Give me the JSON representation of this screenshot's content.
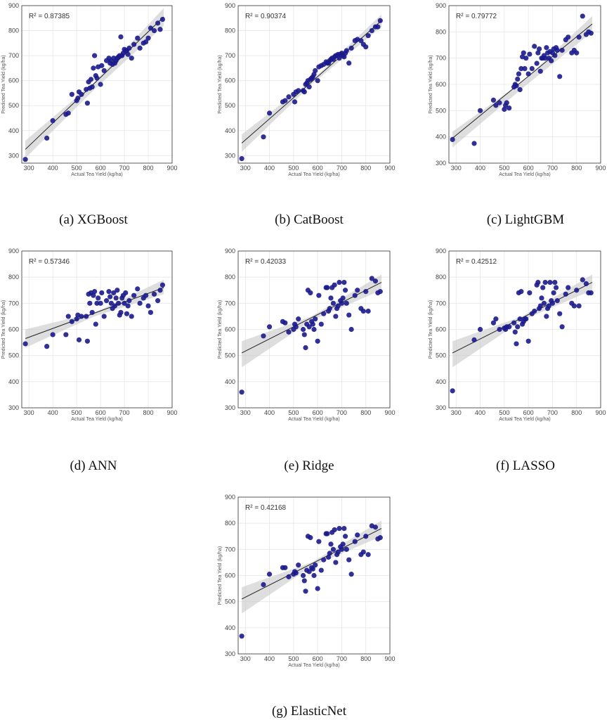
{
  "colors": {
    "point": "#1a1a8c",
    "fit_line": "#222222",
    "band": "#c8c8c8",
    "grid": "#e6e6e6"
  },
  "actual_x": [
    285,
    375,
    400,
    455,
    465,
    480,
    500,
    505,
    510,
    520,
    540,
    545,
    550,
    555,
    560,
    565,
    570,
    575,
    580,
    585,
    590,
    600,
    605,
    615,
    625,
    635,
    640,
    645,
    650,
    655,
    660,
    665,
    670,
    675,
    680,
    685,
    690,
    695,
    700,
    705,
    710,
    715,
    720,
    730,
    740,
    755,
    765,
    780,
    790,
    800,
    810,
    825,
    840,
    850,
    860
  ],
  "chart_data": [
    {
      "type": "scatter",
      "caption": "(a) XGBoost",
      "r2_text": "R² = 0.87385",
      "xlabel": "Actual Tea Yield (kg/ha)",
      "ylabel": "Predicted Tea Yield (kg/ha)",
      "xlim": [
        270,
        900
      ],
      "ylim": [
        270,
        900
      ],
      "xticks": [
        300,
        400,
        500,
        600,
        700,
        800,
        900
      ],
      "yticks": [
        300,
        400,
        500,
        600,
        700,
        800,
        900
      ],
      "fit": [
        [
          285,
          325
        ],
        [
          865,
          855
        ]
      ],
      "band": [
        [
          285,
          360,
          290
        ],
        [
          575,
          595,
          565
        ],
        [
          865,
          890,
          820
        ]
      ],
      "y": [
        285,
        370,
        440,
        465,
        470,
        545,
        520,
        530,
        555,
        545,
        565,
        510,
        595,
        570,
        605,
        575,
        650,
        700,
        620,
        610,
        655,
        585,
        660,
        640,
        680,
        690,
        670,
        680,
        665,
        690,
        670,
        680,
        690,
        695,
        700,
        775,
        700,
        710,
        725,
        720,
        720,
        705,
        730,
        690,
        745,
        770,
        730,
        750,
        755,
        770,
        810,
        800,
        830,
        805,
        845
      ]
    },
    {
      "type": "scatter",
      "caption": "(b) CatBoost",
      "r2_text": "R² = 0.90374",
      "xlabel": "Actual Tea Yield (kg/ha)",
      "ylabel": "Predicted Tea Yield (kg/ha)",
      "xlim": [
        270,
        900
      ],
      "ylim": [
        270,
        900
      ],
      "xticks": [
        300,
        400,
        500,
        600,
        700,
        800,
        900
      ],
      "yticks": [
        300,
        400,
        500,
        600,
        700,
        800,
        900
      ],
      "fit": [
        [
          285,
          350
        ],
        [
          865,
          840
        ]
      ],
      "band": [
        [
          285,
          385,
          315
        ],
        [
          575,
          600,
          585
        ],
        [
          865,
          865,
          815
        ]
      ],
      "y": [
        288,
        375,
        470,
        515,
        520,
        535,
        545,
        515,
        555,
        560,
        560,
        555,
        585,
        590,
        600,
        575,
        605,
        610,
        615,
        625,
        640,
        600,
        655,
        660,
        665,
        675,
        670,
        670,
        680,
        685,
        690,
        685,
        695,
        700,
        700,
        705,
        690,
        705,
        710,
        700,
        695,
        710,
        720,
        670,
        730,
        760,
        765,
        760,
        745,
        735,
        780,
        800,
        815,
        815,
        840
      ]
    },
    {
      "type": "scatter",
      "caption": "(c) LightGBM",
      "r2_text": "R² = 0.79772",
      "xlabel": "Actual Tea Yield (kg/ha)",
      "ylabel": "Predicted Tea Yield (kg/ha)",
      "xlim": [
        270,
        900
      ],
      "ylim": [
        300,
        900
      ],
      "xticks": [
        300,
        400,
        500,
        600,
        700,
        800,
        900
      ],
      "yticks": [
        300,
        400,
        500,
        600,
        700,
        800,
        900
      ],
      "fit": [
        [
          285,
          395
        ],
        [
          865,
          830
        ]
      ],
      "band": [
        [
          285,
          420,
          360
        ],
        [
          575,
          610,
          585
        ],
        [
          865,
          860,
          800
        ]
      ],
      "y": [
        390,
        375,
        500,
        540,
        520,
        530,
        505,
        520,
        530,
        510,
        590,
        600,
        595,
        620,
        640,
        580,
        660,
        705,
        720,
        660,
        700,
        640,
        715,
        660,
        745,
        680,
        720,
        735,
        650,
        700,
        700,
        710,
        700,
        740,
        720,
        700,
        725,
        690,
        720,
        735,
        710,
        740,
        730,
        630,
        730,
        770,
        780,
        720,
        730,
        720,
        780,
        860,
        790,
        800,
        795
      ]
    },
    {
      "type": "scatter",
      "caption": "(d) ANN",
      "r2_text": "R² = 0.57346",
      "xlabel": "Actual Tea Yield (kg/ha)",
      "ylabel": "Predicted Tea Yield (kg/ha)",
      "xlim": [
        270,
        900
      ],
      "ylim": [
        300,
        900
      ],
      "xticks": [
        300,
        400,
        500,
        600,
        700,
        800,
        900
      ],
      "yticks": [
        300,
        400,
        500,
        600,
        700,
        800,
        900
      ],
      "fit": [
        [
          285,
          565
        ],
        [
          865,
          760
        ]
      ],
      "band": [
        [
          285,
          600,
          530
        ],
        [
          575,
          665,
          650
        ],
        [
          865,
          790,
          735
        ]
      ],
      "y": [
        545,
        535,
        580,
        580,
        650,
        630,
        640,
        655,
        560,
        650,
        650,
        555,
        735,
        700,
        740,
        665,
        730,
        745,
        620,
        700,
        720,
        700,
        740,
        650,
        710,
        745,
        725,
        700,
        680,
        740,
        690,
        720,
        750,
        700,
        655,
        665,
        720,
        730,
        700,
        740,
        660,
        690,
        710,
        650,
        730,
        755,
        700,
        720,
        730,
        690,
        665,
        735,
        710,
        750,
        770
      ]
    },
    {
      "type": "scatter",
      "caption": "(e) Ridge",
      "r2_text": "R² = 0.42033",
      "xlabel": "Actual Tea Yield (kg/ha)",
      "ylabel": "Predicted Tea Yield (kg/ha)",
      "xlim": [
        270,
        900
      ],
      "ylim": [
        300,
        900
      ],
      "xticks": [
        300,
        400,
        500,
        600,
        700,
        800,
        900
      ],
      "yticks": [
        300,
        400,
        500,
        600,
        700,
        800,
        900
      ],
      "fit": [
        [
          285,
          510
        ],
        [
          865,
          780
        ]
      ],
      "band": [
        [
          285,
          555,
          455
        ],
        [
          575,
          650,
          635
        ],
        [
          865,
          810,
          750
        ]
      ],
      "y": [
        360,
        575,
        610,
        630,
        625,
        590,
        600,
        620,
        610,
        640,
        600,
        580,
        530,
        620,
        750,
        610,
        740,
        630,
        620,
        600,
        640,
        555,
        730,
        620,
        660,
        760,
        760,
        670,
        680,
        720,
        760,
        700,
        770,
        650,
        680,
        690,
        780,
        710,
        700,
        720,
        780,
        750,
        700,
        655,
        600,
        730,
        750,
        680,
        670,
        745,
        670,
        795,
        785,
        740,
        745
      ]
    },
    {
      "type": "scatter",
      "caption": "(f) LASSO",
      "r2_text": "R² = 0.42512",
      "xlabel": "Actual Tea Yield (kg/ha)",
      "ylabel": "Predicted Tea Yield (kg/ha)",
      "xlim": [
        270,
        900
      ],
      "ylim": [
        300,
        900
      ],
      "xticks": [
        300,
        400,
        500,
        600,
        700,
        800,
        900
      ],
      "yticks": [
        300,
        400,
        500,
        600,
        700,
        800,
        900
      ],
      "fit": [
        [
          285,
          510
        ],
        [
          865,
          780
        ]
      ],
      "band": [
        [
          285,
          555,
          455
        ],
        [
          575,
          650,
          635
        ],
        [
          865,
          810,
          750
        ]
      ],
      "y": [
        365,
        560,
        600,
        625,
        640,
        600,
        605,
        600,
        610,
        610,
        625,
        590,
        545,
        610,
        740,
        640,
        745,
        620,
        630,
        640,
        640,
        555,
        740,
        660,
        670,
        770,
        780,
        680,
        690,
        720,
        760,
        700,
        780,
        650,
        680,
        690,
        780,
        710,
        700,
        740,
        780,
        760,
        710,
        660,
        610,
        735,
        760,
        700,
        690,
        750,
        690,
        790,
        775,
        740,
        740
      ]
    },
    {
      "type": "scatter",
      "caption": "(g) ElasticNet",
      "r2_text": "R² = 0.42168",
      "xlabel": "Actual Tea Yield (kg/ha)",
      "ylabel": "Predicted Tea Yield (kg/ha)",
      "xlim": [
        270,
        900
      ],
      "ylim": [
        300,
        900
      ],
      "xticks": [
        300,
        400,
        500,
        600,
        700,
        800,
        900
      ],
      "yticks": [
        300,
        400,
        500,
        600,
        700,
        800,
        900
      ],
      "fit": [
        [
          285,
          510
        ],
        [
          865,
          780
        ]
      ],
      "band": [
        [
          285,
          555,
          455
        ],
        [
          575,
          650,
          635
        ],
        [
          865,
          810,
          750
        ]
      ],
      "y": [
        368,
        565,
        605,
        630,
        630,
        595,
        605,
        615,
        610,
        640,
        600,
        580,
        540,
        620,
        750,
        615,
        745,
        630,
        625,
        600,
        640,
        550,
        730,
        620,
        660,
        760,
        760,
        670,
        685,
        720,
        765,
        700,
        775,
        650,
        680,
        690,
        780,
        710,
        700,
        720,
        780,
        750,
        700,
        660,
        605,
        730,
        755,
        680,
        690,
        750,
        680,
        790,
        785,
        740,
        745
      ]
    }
  ]
}
